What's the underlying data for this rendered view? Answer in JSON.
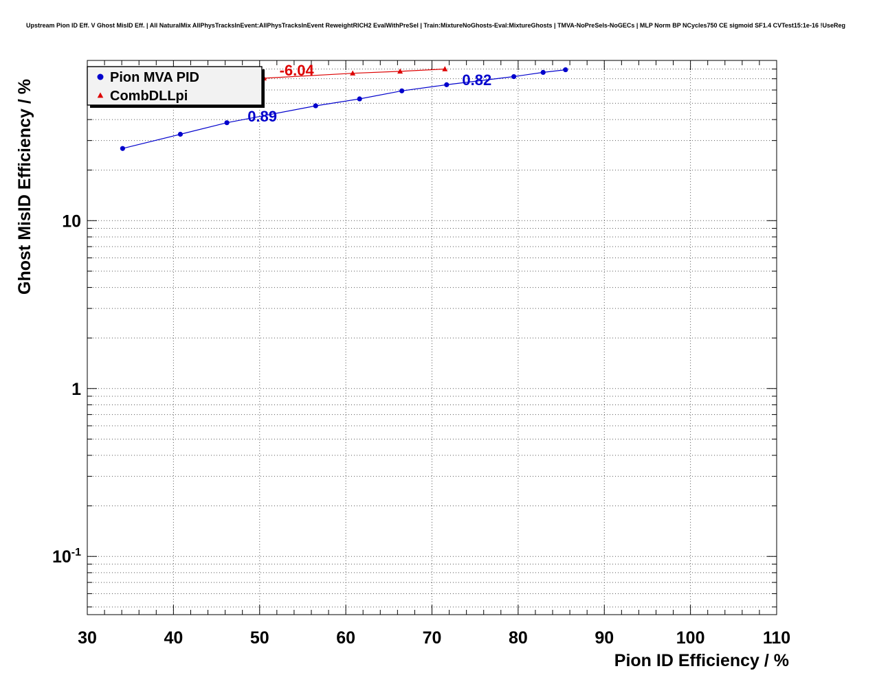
{
  "title": "Upstream Pion ID Eff. V Ghost MisID Eff. | All NaturalMix AllPhysTracksInEvent:AllPhysTracksInEvent ReweightRICH2 EvalWithPreSel | Train:MixtureNoGhosts-Eval:MixtureGhosts | TMVA-NoPreSels-NoGECs | MLP Norm BP NCycles750 CE sigmoid SF1.4 CVTest15:1e-16 !UseReg",
  "chart_data": {
    "type": "line",
    "xlabel": "Pion ID Efficiency / %",
    "ylabel": "Ghost MisID Efficiency / %",
    "xlim": [
      30,
      110
    ],
    "ylim": [
      0.045,
      90
    ],
    "y_scale": "log",
    "x_ticks": [
      30,
      40,
      50,
      60,
      70,
      80,
      90,
      100,
      110
    ],
    "y_major_ticks": [
      10,
      1,
      0.1
    ],
    "grid": true,
    "grid_style": "dotted",
    "legend_position": "top-left",
    "legend_entries": [
      "Pion MVA PID",
      "CombDLLpi"
    ],
    "colors": {
      "blue_series": "#0000cc",
      "red_series": "#dd0000",
      "legend_fill": "#f2f2f2",
      "frame": "#000000"
    },
    "series": [
      {
        "name": "Pion MVA PID",
        "color": "#0000cc",
        "marker": "circle",
        "points": [
          [
            34.1,
            26.9
          ],
          [
            40.8,
            32.7
          ],
          [
            46.2,
            38.3
          ],
          [
            56.5,
            48.3
          ],
          [
            61.6,
            53.1
          ],
          [
            66.5,
            59.3
          ],
          [
            71.7,
            64.5
          ],
          [
            79.5,
            72.1
          ],
          [
            82.9,
            76.4
          ],
          [
            85.5,
            79.2
          ]
        ]
      },
      {
        "name": "CombDLLpi",
        "color": "#dd0000",
        "marker": "triangle",
        "points": [
          [
            50.5,
            70.5
          ],
          [
            60.8,
            75.5
          ],
          [
            66.3,
            77.5
          ],
          [
            71.5,
            80.0
          ]
        ]
      }
    ],
    "annotations": [
      {
        "text": "-6.04",
        "x": 52.3,
        "y": 73,
        "color": "#dd0000"
      },
      {
        "text": "0.82",
        "x": 73.5,
        "y": 64,
        "color": "#0000cc"
      },
      {
        "text": "0.89",
        "x": 48.6,
        "y": 38.9,
        "color": "#0000cc"
      }
    ]
  }
}
